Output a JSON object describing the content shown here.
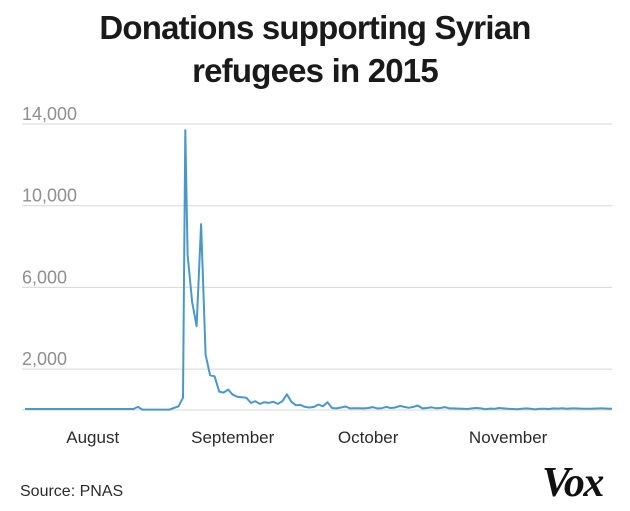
{
  "chart_data": {
    "type": "line",
    "title_line1": "Donations supporting Syrian",
    "title_line2": "refugees in 2015",
    "xlabel": "",
    "ylabel": "",
    "ylim": [
      0,
      14000
    ],
    "y_ticks": [
      2000,
      6000,
      10000,
      14000
    ],
    "y_tick_labels": [
      "2,000",
      "6,000",
      "10,000",
      "14,000"
    ],
    "x_tick_labels": [
      "August",
      "September",
      "October",
      "November"
    ],
    "x_tick_days": [
      16,
      47,
      77,
      108
    ],
    "x_range_days": [
      1,
      131
    ],
    "grid": true,
    "series": [
      {
        "color": "#4a98c9",
        "x": [
          1,
          5,
          10,
          15,
          20,
          25,
          26,
          27,
          29,
          31,
          33,
          35,
          36,
          36.5,
          37,
          38,
          39,
          40,
          41,
          42,
          43,
          44,
          45,
          46,
          47,
          48,
          49,
          50,
          51,
          52,
          53,
          54,
          55,
          56,
          57,
          58,
          59,
          60,
          61,
          62,
          63,
          64,
          65,
          66,
          67,
          68,
          69,
          70,
          71,
          72,
          73,
          74,
          75,
          76,
          77,
          78,
          79,
          80,
          81,
          82,
          83,
          84,
          85,
          86,
          87,
          88,
          89,
          90,
          91,
          92,
          93,
          94,
          95,
          96,
          97,
          98,
          99,
          100,
          101,
          102,
          103,
          104,
          105,
          106,
          107,
          108,
          109,
          110,
          111,
          112,
          113,
          114,
          115,
          116,
          117,
          118,
          119,
          120,
          121,
          122,
          123,
          124,
          125,
          126,
          127,
          128,
          129,
          130,
          131
        ],
        "values": [
          50,
          50,
          50,
          50,
          50,
          50,
          150,
          20,
          20,
          20,
          20,
          180,
          600,
          13700,
          7600,
          5300,
          4100,
          9100,
          2700,
          1700,
          1650,
          900,
          850,
          1000,
          750,
          650,
          620,
          600,
          350,
          430,
          300,
          380,
          350,
          400,
          300,
          430,
          770,
          400,
          230,
          250,
          150,
          120,
          150,
          270,
          180,
          380,
          100,
          80,
          120,
          170,
          80,
          90,
          90,
          80,
          100,
          140,
          80,
          90,
          150,
          100,
          120,
          200,
          150,
          110,
          150,
          220,
          80,
          100,
          130,
          90,
          100,
          140,
          80,
          80,
          70,
          60,
          50,
          80,
          100,
          80,
          40,
          70,
          60,
          100,
          80,
          60,
          50,
          40,
          60,
          80,
          60,
          30,
          60,
          60,
          50,
          80,
          70,
          90,
          60,
          80,
          80,
          70,
          60,
          60,
          70,
          80,
          80,
          70,
          60
        ]
      }
    ]
  },
  "source": "Source: PNAS",
  "logo_text": "Vox"
}
